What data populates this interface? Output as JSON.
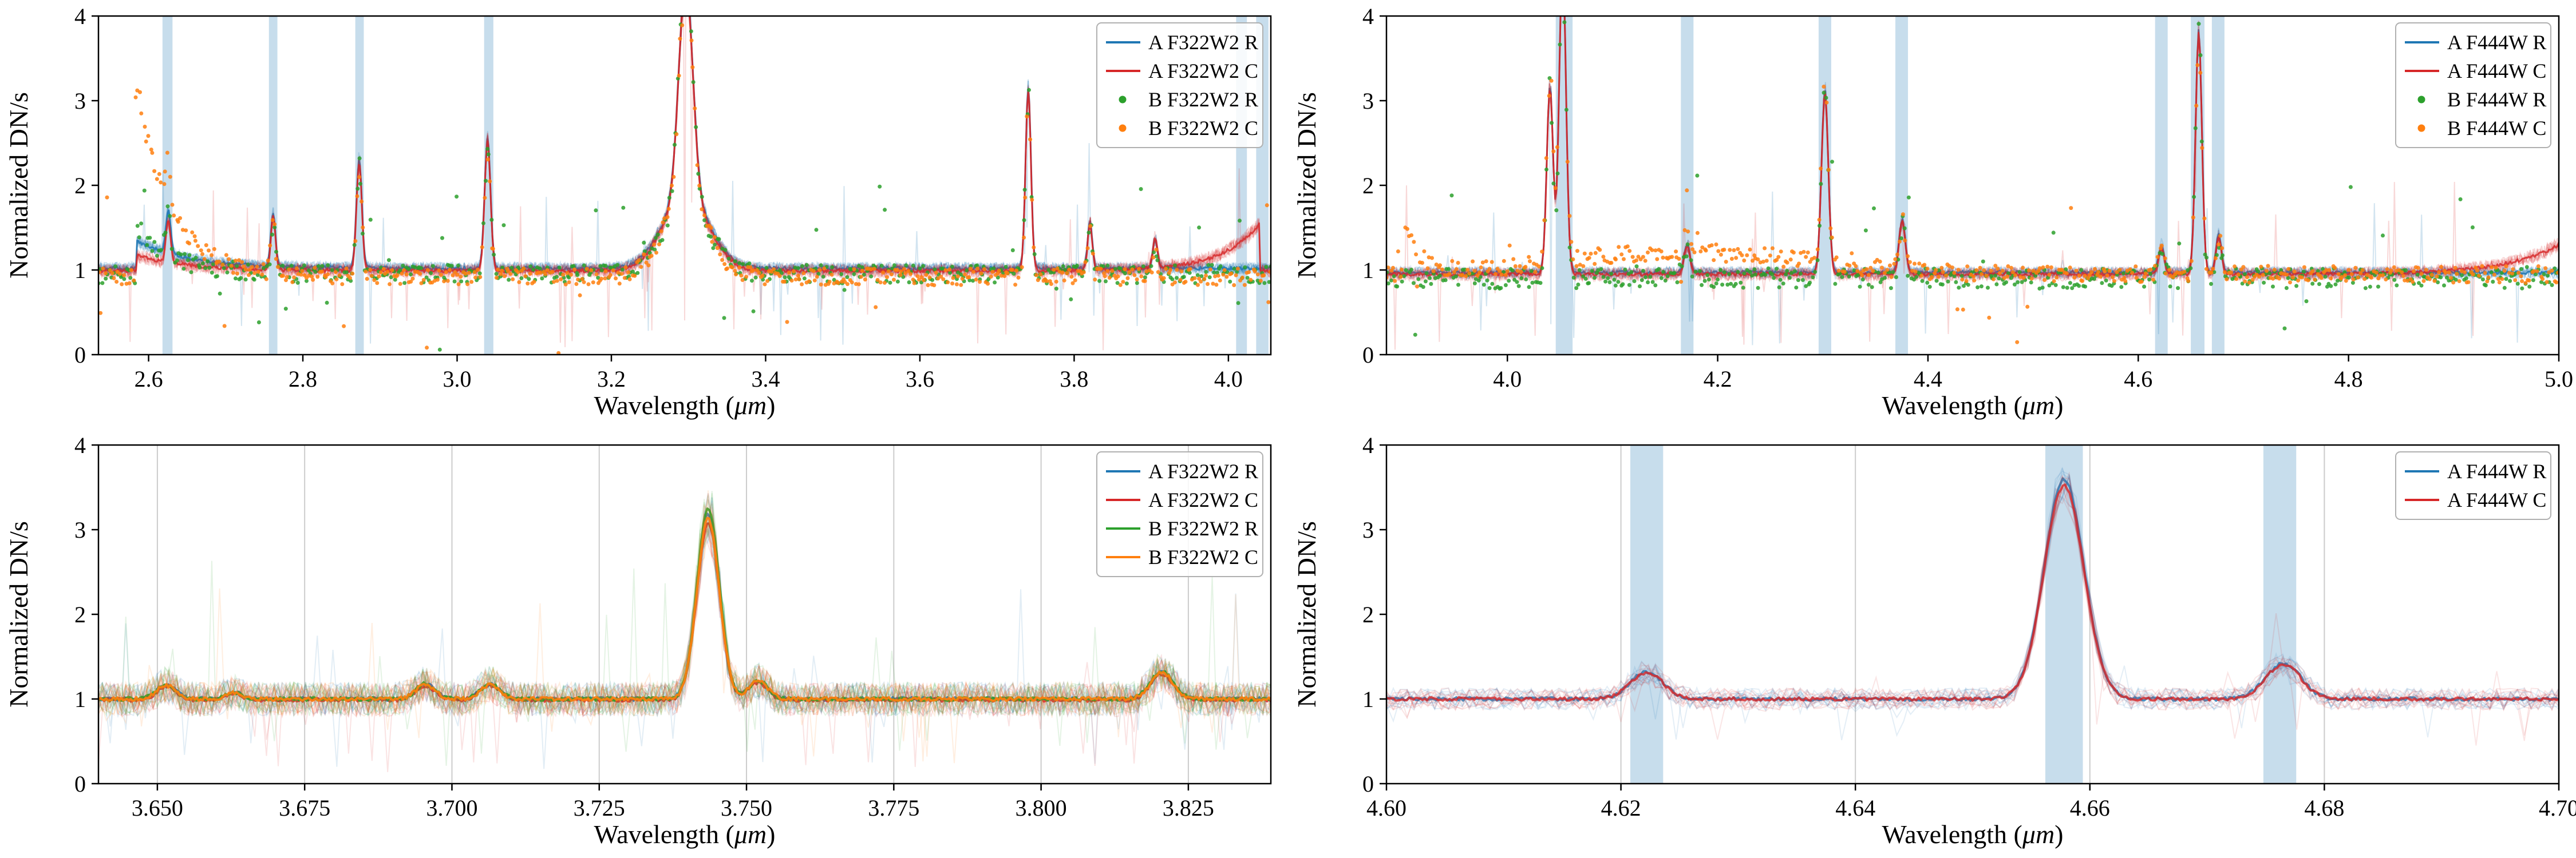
{
  "figure": {
    "background": "#ffffff",
    "band_color": "#1f77b4",
    "band_alpha": 0.25,
    "grid_color": "#cccccc",
    "axis_color": "#000000",
    "series_colors": {
      "blue": "#1f77b4",
      "red": "#d62728",
      "green": "#2ca02c",
      "orange": "#ff7f0e"
    }
  },
  "chart_data": [
    {
      "id": "f322w2-full-range",
      "type": "line",
      "xlabel": "Wavelength (μm)",
      "ylabel": "Normalized DN/s",
      "xlim": [
        2.535,
        4.055
      ],
      "ylim": [
        0,
        4
      ],
      "xticks": [
        2.6,
        2.8,
        3.0,
        3.2,
        3.4,
        3.6,
        3.8,
        4.0
      ],
      "xtick_labels": [
        "2.6",
        "2.8",
        "3.0",
        "3.2",
        "3.4",
        "3.6",
        "3.8",
        "4.0"
      ],
      "yticks": [
        0,
        1,
        2,
        3,
        4
      ],
      "ytick_labels": [
        "0",
        "1",
        "2",
        "3",
        "4"
      ],
      "grid_x": false,
      "samples": 1000,
      "bands": [
        [
          2.618,
          2.631
        ],
        [
          2.756,
          2.767
        ],
        [
          2.868,
          2.879
        ],
        [
          3.035,
          3.047
        ],
        [
          4.01,
          4.024
        ],
        [
          4.036,
          4.052
        ]
      ],
      "peaks": [
        {
          "c": 2.6255,
          "h": 0.5,
          "w": 0.003
        },
        {
          "c": 2.7615,
          "h": 0.62,
          "w": 0.003
        },
        {
          "c": 2.873,
          "h": 1.28,
          "w": 0.0035
        },
        {
          "c": 3.0395,
          "h": 1.52,
          "w": 0.0038
        },
        {
          "c": 3.2965,
          "h": 2.55,
          "w": 0.009
        },
        {
          "c": 3.2965,
          "h": 0.85,
          "w": 0.03
        },
        {
          "c": 3.7405,
          "h": 2.12,
          "w": 0.0035
        },
        {
          "c": 3.8205,
          "h": 0.55,
          "w": 0.003
        },
        {
          "c": 3.905,
          "h": 0.35,
          "w": 0.003
        }
      ],
      "legend": {
        "position": "upper-right",
        "entries": [
          {
            "label": "A F322W2 R",
            "color": "#1f77b4",
            "marker": "line"
          },
          {
            "label": "A F322W2 C",
            "color": "#d62728",
            "marker": "line"
          },
          {
            "label": "B F322W2 R",
            "color": "#2ca02c",
            "marker": "dot"
          },
          {
            "label": "B F322W2 C",
            "color": "#ff7f0e",
            "marker": "dot"
          }
        ]
      },
      "series": [
        {
          "name": "A F322W2 R",
          "style": "line",
          "color": "#1f77b4",
          "baseline": 1.02,
          "traces": 7,
          "trace_alpha": 0.2,
          "trace_noise": 0.07,
          "trace_lw": 2,
          "lw": 3,
          "alpha": 0.85,
          "mean_noise": 0.02,
          "dip_prob": 0.004,
          "dip_amp": 0.9,
          "spike_prob": 0.002,
          "spike_amp": 1.0,
          "ramps": [
            {
              "at": 2.585,
              "dir": 1,
              "amp": 0.32,
              "tau": 0.07
            }
          ]
        },
        {
          "name": "A F322W2 C",
          "style": "line",
          "color": "#d62728",
          "baseline": 0.99,
          "traces": 7,
          "trace_alpha": 0.18,
          "trace_noise": 0.08,
          "trace_lw": 2,
          "lw": 3,
          "alpha": 0.8,
          "mean_noise": 0.02,
          "dip_prob": 0.007,
          "dip_amp": 0.95,
          "spike_prob": 0.002,
          "spike_amp": 1.1,
          "ramps": [
            {
              "at": 2.585,
              "dir": 1,
              "amp": 0.18,
              "tau": 0.07
            },
            {
              "at": 4.04,
              "dir": -1,
              "amp": 0.55,
              "tau": 0.05
            }
          ]
        },
        {
          "name": "B F322W2 R",
          "style": "scatter",
          "color": "#2ca02c",
          "baseline": 0.95,
          "n_points": 540,
          "noise": 0.11,
          "r": 3.5,
          "alpha": 0.85,
          "outlier_prob": 0.05,
          "outlier_amp": 1.1,
          "ramps": [
            {
              "at": 2.585,
              "dir": 1,
              "amp": 0.55,
              "tau": 0.05
            }
          ]
        },
        {
          "name": "B F322W2 C",
          "style": "scatter",
          "color": "#ff7f0e",
          "baseline": 0.92,
          "n_points": 540,
          "noise": 0.1,
          "r": 3.5,
          "alpha": 0.85,
          "outlier_prob": 0.04,
          "outlier_amp": 1.0,
          "ramps": [
            {
              "at": 2.583,
              "dir": 1,
              "amp": 2.3,
              "tau": 0.045
            }
          ]
        }
      ]
    },
    {
      "id": "f444w-full-range",
      "type": "line",
      "xlabel": "Wavelength (μm)",
      "ylabel": "Normalized DN/s",
      "xlim": [
        3.885,
        5.0
      ],
      "ylim": [
        0,
        4
      ],
      "xticks": [
        4.0,
        4.2,
        4.4,
        4.6,
        4.8,
        5.0
      ],
      "xtick_labels": [
        "4.0",
        "4.2",
        "4.4",
        "4.6",
        "4.8",
        "5.0"
      ],
      "yticks": [
        0,
        1,
        2,
        3,
        4
      ],
      "ytick_labels": [
        "0",
        "1",
        "2",
        "3",
        "4"
      ],
      "grid_x": false,
      "samples": 820,
      "bands": [
        [
          4.046,
          4.062
        ],
        [
          4.165,
          4.177
        ],
        [
          4.296,
          4.308
        ],
        [
          4.369,
          4.381
        ],
        [
          4.616,
          4.628
        ],
        [
          4.65,
          4.663
        ],
        [
          4.67,
          4.682
        ]
      ],
      "peaks": [
        {
          "c": 4.0405,
          "h": 2.2,
          "w": 0.003
        },
        {
          "c": 4.0525,
          "h": 3.7,
          "w": 0.0032
        },
        {
          "c": 4.171,
          "h": 0.33,
          "w": 0.0028
        },
        {
          "c": 4.302,
          "h": 2.15,
          "w": 0.0032
        },
        {
          "c": 4.3755,
          "h": 0.62,
          "w": 0.003
        },
        {
          "c": 4.622,
          "h": 0.33,
          "w": 0.0026
        },
        {
          "c": 4.6575,
          "h": 2.85,
          "w": 0.003
        },
        {
          "c": 4.6765,
          "h": 0.45,
          "w": 0.0026
        }
      ],
      "legend": {
        "position": "upper-right",
        "entries": [
          {
            "label": "A F444W R",
            "color": "#1f77b4",
            "marker": "line"
          },
          {
            "label": "A F444W C",
            "color": "#d62728",
            "marker": "line"
          },
          {
            "label": "B F444W R",
            "color": "#2ca02c",
            "marker": "dot"
          },
          {
            "label": "B F444W C",
            "color": "#ff7f0e",
            "marker": "dot"
          }
        ]
      },
      "series": [
        {
          "name": "A F444W R",
          "style": "line",
          "color": "#1f77b4",
          "baseline": 0.97,
          "traces": 7,
          "trace_alpha": 0.2,
          "trace_noise": 0.07,
          "trace_lw": 2,
          "lw": 3,
          "alpha": 0.85,
          "mean_noise": 0.02,
          "dip_prob": 0.004,
          "dip_amp": 0.9,
          "spike_prob": 0.002,
          "spike_amp": 1.0
        },
        {
          "name": "A F444W C",
          "style": "line",
          "color": "#d62728",
          "baseline": 0.95,
          "traces": 7,
          "trace_alpha": 0.18,
          "trace_noise": 0.08,
          "trace_lw": 2,
          "lw": 3,
          "alpha": 0.8,
          "mean_noise": 0.02,
          "dip_prob": 0.007,
          "dip_amp": 0.95,
          "spike_prob": 0.002,
          "spike_amp": 1.1,
          "ramps": [
            {
              "at": 5.0,
              "dir": -1,
              "amp": 0.35,
              "tau": 0.05
            }
          ]
        },
        {
          "name": "B F444W R",
          "style": "scatter",
          "color": "#2ca02c",
          "baseline": 0.9,
          "n_points": 520,
          "noise": 0.12,
          "r": 3.5,
          "alpha": 0.85,
          "outlier_prob": 0.05,
          "outlier_amp": 1.1
        },
        {
          "name": "B F444W C",
          "style": "scatter",
          "color": "#ff7f0e",
          "baseline": 0.95,
          "n_points": 520,
          "noise": 0.1,
          "r": 3.5,
          "alpha": 0.85,
          "outlier_prob": 0.035,
          "outlier_amp": 1.0,
          "extra_peaks": [
            {
              "c": 4.17,
              "h": 0.27,
              "w": 0.11
            }
          ],
          "ramps": [
            {
              "at": 3.9,
              "dir": 1,
              "amp": 0.55,
              "tau": 0.018
            }
          ]
        }
      ]
    },
    {
      "id": "f322w2-zoom-3p74",
      "type": "line",
      "xlabel": "Wavelength (μm)",
      "ylabel": "Normalized DN/s",
      "xlim": [
        3.64,
        3.839
      ],
      "ylim": [
        0,
        4
      ],
      "xticks": [
        3.65,
        3.675,
        3.7,
        3.725,
        3.75,
        3.775,
        3.8,
        3.825
      ],
      "xtick_labels": [
        "3.650",
        "3.675",
        "3.700",
        "3.725",
        "3.750",
        "3.775",
        "3.800",
        "3.825"
      ],
      "yticks": [
        0,
        1,
        2,
        3,
        4
      ],
      "ytick_labels": [
        "0",
        "1",
        "2",
        "3",
        "4"
      ],
      "grid_x": true,
      "samples": 620,
      "trace_samples": 300,
      "bands": [],
      "peaks": [
        {
          "c": 3.6515,
          "h": 0.17,
          "w": 0.0016
        },
        {
          "c": 3.663,
          "h": 0.08,
          "w": 0.0013
        },
        {
          "c": 3.6955,
          "h": 0.18,
          "w": 0.0016
        },
        {
          "c": 3.7065,
          "h": 0.18,
          "w": 0.0016
        },
        {
          "c": 3.7435,
          "h": 2.25,
          "w": 0.0019
        },
        {
          "c": 3.752,
          "h": 0.22,
          "w": 0.0016
        },
        {
          "c": 3.8205,
          "h": 0.33,
          "w": 0.0019
        }
      ],
      "legend": {
        "position": "upper-right",
        "entries": [
          {
            "label": "A F322W2 R",
            "color": "#1f77b4",
            "marker": "line"
          },
          {
            "label": "A F322W2 C",
            "color": "#d62728",
            "marker": "line"
          },
          {
            "label": "B F322W2 R",
            "color": "#2ca02c",
            "marker": "line"
          },
          {
            "label": "B F322W2 C",
            "color": "#ff7f0e",
            "marker": "line"
          }
        ]
      },
      "series": [
        {
          "name": "A F322W2 R",
          "style": "line",
          "color": "#1f77b4",
          "baseline": 1.0,
          "peak_scale": 0.97,
          "traces": 8,
          "trace_alpha": 0.13,
          "trace_noise": 0.2,
          "trace_lw": 2,
          "lw": 4,
          "alpha": 0.85,
          "mean_noise": 0.022,
          "dip_prob": 0.012,
          "dip_amp": 0.85,
          "spike_prob": 0.004,
          "spike_amp": 1.2
        },
        {
          "name": "A F322W2 C",
          "style": "line",
          "color": "#d62728",
          "baseline": 0.99,
          "peak_scale": 0.93,
          "traces": 8,
          "trace_alpha": 0.13,
          "trace_noise": 0.2,
          "trace_lw": 2,
          "lw": 4,
          "alpha": 0.85,
          "mean_noise": 0.022,
          "dip_prob": 0.015,
          "dip_amp": 0.85,
          "spike_prob": 0.003,
          "spike_amp": 1.1
        },
        {
          "name": "B F322W2 R",
          "style": "line",
          "color": "#2ca02c",
          "baseline": 1.0,
          "peak_scale": 1.0,
          "traces": 8,
          "trace_alpha": 0.13,
          "trace_noise": 0.2,
          "trace_lw": 2,
          "lw": 4,
          "alpha": 0.9,
          "mean_noise": 0.022,
          "dip_prob": 0.01,
          "dip_amp": 0.8,
          "spike_prob": 0.006,
          "spike_amp": 1.8
        },
        {
          "name": "B F322W2 C",
          "style": "line",
          "color": "#ff7f0e",
          "baseline": 1.0,
          "peak_scale": 0.95,
          "traces": 8,
          "trace_alpha": 0.13,
          "trace_noise": 0.2,
          "trace_lw": 2,
          "lw": 4,
          "alpha": 0.9,
          "mean_noise": 0.022,
          "dip_prob": 0.01,
          "dip_amp": 0.8,
          "spike_prob": 0.003,
          "spike_amp": 1.2
        }
      ]
    },
    {
      "id": "f444w-zoom-4p66",
      "type": "line",
      "xlabel": "Wavelength (μm)",
      "ylabel": "Normalized DN/s",
      "xlim": [
        4.6,
        4.7
      ],
      "ylim": [
        0,
        4
      ],
      "xticks": [
        4.6,
        4.62,
        4.64,
        4.66,
        4.68,
        4.7
      ],
      "xtick_labels": [
        "4.60",
        "4.62",
        "4.64",
        "4.66",
        "4.68",
        "4.70"
      ],
      "yticks": [
        0,
        1,
        2,
        3,
        4
      ],
      "ytick_labels": [
        "0",
        "1",
        "2",
        "3",
        "4"
      ],
      "grid_x": true,
      "samples": 520,
      "trace_samples": 170,
      "bands": [
        [
          4.6208,
          4.6236
        ],
        [
          4.6562,
          4.6594
        ],
        [
          4.6748,
          4.6776
        ]
      ],
      "peaks": [
        {
          "c": 4.6222,
          "h": 0.32,
          "w": 0.0014
        },
        {
          "c": 4.6578,
          "h": 2.6,
          "w": 0.0017
        },
        {
          "c": 4.6765,
          "h": 0.42,
          "w": 0.0015
        }
      ],
      "legend": {
        "position": "upper-right",
        "entries": [
          {
            "label": "A F444W R",
            "color": "#1f77b4",
            "marker": "line"
          },
          {
            "label": "A F444W C",
            "color": "#d62728",
            "marker": "line"
          }
        ]
      },
      "series": [
        {
          "name": "A F444W R",
          "style": "line",
          "color": "#1f77b4",
          "baseline": 1.0,
          "peak_scale": 1.0,
          "traces": 10,
          "trace_alpha": 0.12,
          "trace_noise": 0.13,
          "trace_lw": 2,
          "lw": 4,
          "alpha": 0.8,
          "mean_noise": 0.02,
          "dip_prob": 0.012,
          "dip_amp": 0.55,
          "spike_prob": 0.002,
          "spike_amp": 0.6
        },
        {
          "name": "A F444W C",
          "style": "line",
          "color": "#d62728",
          "baseline": 1.0,
          "peak_scale": 0.97,
          "traces": 10,
          "trace_alpha": 0.12,
          "trace_noise": 0.13,
          "trace_lw": 2,
          "lw": 4,
          "alpha": 0.8,
          "mean_noise": 0.02,
          "dip_prob": 0.012,
          "dip_amp": 0.55,
          "spike_prob": 0.002,
          "spike_amp": 0.6
        }
      ]
    }
  ]
}
